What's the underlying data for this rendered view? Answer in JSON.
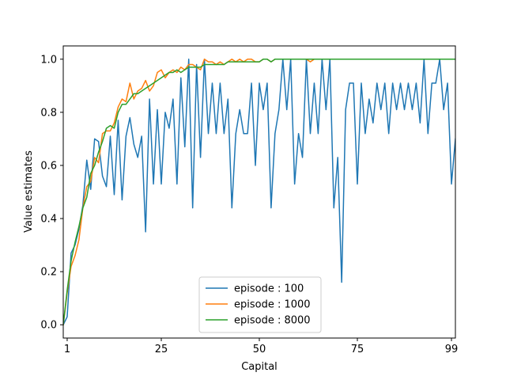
{
  "chart_data": {
    "type": "line",
    "xlabel": "Capital",
    "ylabel": "Value estimates",
    "xlim": [
      0,
      100
    ],
    "ylim": [
      -0.05,
      1.05
    ],
    "xticks": [
      1,
      25,
      50,
      75,
      99
    ],
    "yticks": [
      0.0,
      0.2,
      0.4,
      0.6,
      0.8,
      1.0
    ],
    "ytick_labels": [
      "0.0",
      "0.2",
      "0.4",
      "0.6",
      "0.8",
      "1.0"
    ],
    "grid": false,
    "legend_position": "lower center",
    "series": [
      {
        "name": "episode : 100",
        "color": "#1f77b4",
        "x": [
          0,
          1,
          2,
          3,
          4,
          5,
          6,
          7,
          8,
          9,
          10,
          11,
          12,
          13,
          14,
          15,
          16,
          17,
          18,
          19,
          20,
          21,
          22,
          23,
          24,
          25,
          26,
          27,
          28,
          29,
          30,
          31,
          32,
          33,
          34,
          35,
          36,
          37,
          38,
          39,
          40,
          41,
          42,
          43,
          44,
          45,
          46,
          47,
          48,
          49,
          50,
          51,
          52,
          53,
          54,
          55,
          56,
          57,
          58,
          59,
          60,
          61,
          62,
          63,
          64,
          65,
          66,
          67,
          68,
          69,
          70,
          71,
          72,
          73,
          74,
          75,
          76,
          77,
          78,
          79,
          80,
          81,
          82,
          83,
          84,
          85,
          86,
          87,
          88,
          89,
          90,
          91,
          92,
          93,
          94,
          95,
          96,
          97,
          98,
          99,
          100
        ],
        "y": [
          0.0,
          0.03,
          0.27,
          0.3,
          0.36,
          0.45,
          0.62,
          0.51,
          0.7,
          0.69,
          0.56,
          0.52,
          0.71,
          0.49,
          0.77,
          0.47,
          0.71,
          0.78,
          0.68,
          0.63,
          0.71,
          0.35,
          0.85,
          0.53,
          0.81,
          0.53,
          0.8,
          0.74,
          0.85,
          0.53,
          0.93,
          0.67,
          1.0,
          0.44,
          0.98,
          0.63,
          1.0,
          0.72,
          0.91,
          0.72,
          0.91,
          0.72,
          0.85,
          0.44,
          0.72,
          0.81,
          0.72,
          0.72,
          0.91,
          0.6,
          0.91,
          0.81,
          0.91,
          0.44,
          0.72,
          0.81,
          1.0,
          0.81,
          1.0,
          0.53,
          0.72,
          0.63,
          1.0,
          0.72,
          0.91,
          0.72,
          1.0,
          0.81,
          1.0,
          0.44,
          0.63,
          0.16,
          0.81,
          0.91,
          0.91,
          0.53,
          0.91,
          0.72,
          0.85,
          0.76,
          0.91,
          0.81,
          0.91,
          0.72,
          0.91,
          0.81,
          0.91,
          0.81,
          0.91,
          0.81,
          0.91,
          0.76,
          1.0,
          0.72,
          0.91,
          0.91,
          1.0,
          0.81,
          0.91,
          0.53,
          0.7
        ]
      },
      {
        "name": "episode : 1000",
        "color": "#ff7f0e",
        "x": [
          0,
          1,
          2,
          3,
          4,
          5,
          6,
          7,
          8,
          9,
          10,
          11,
          12,
          13,
          14,
          15,
          16,
          17,
          18,
          19,
          20,
          21,
          22,
          23,
          24,
          25,
          26,
          27,
          28,
          29,
          30,
          31,
          32,
          33,
          34,
          35,
          36,
          37,
          38,
          39,
          40,
          41,
          42,
          43,
          44,
          45,
          46,
          47,
          48,
          49,
          50,
          51,
          52,
          53,
          54,
          55,
          56,
          57,
          58,
          59,
          60,
          61,
          62,
          63,
          64,
          65,
          66,
          67,
          68,
          69,
          70,
          71,
          72,
          73,
          74,
          75,
          76,
          77,
          78,
          79,
          80,
          81,
          82,
          83,
          84,
          85,
          86,
          87,
          88,
          89,
          90,
          91,
          92,
          93,
          94,
          95,
          96,
          97,
          98,
          99,
          100
        ],
        "y": [
          0.0,
          0.12,
          0.22,
          0.26,
          0.32,
          0.44,
          0.52,
          0.54,
          0.63,
          0.61,
          0.72,
          0.73,
          0.73,
          0.76,
          0.82,
          0.85,
          0.84,
          0.91,
          0.85,
          0.88,
          0.89,
          0.92,
          0.88,
          0.9,
          0.95,
          0.96,
          0.93,
          0.95,
          0.96,
          0.95,
          0.97,
          0.96,
          0.98,
          0.98,
          0.97,
          0.96,
          1.0,
          0.99,
          0.99,
          0.98,
          0.99,
          0.98,
          0.99,
          1.0,
          0.99,
          1.0,
          0.99,
          1.0,
          1.0,
          0.99,
          0.99,
          1.0,
          1.0,
          0.99,
          1.0,
          1.0,
          1.0,
          1.0,
          1.0,
          1.0,
          1.0,
          1.0,
          1.0,
          0.99,
          1.0,
          1.0,
          1.0,
          1.0,
          1.0,
          1.0,
          1.0,
          1.0,
          1.0,
          1.0,
          1.0,
          1.0,
          1.0,
          1.0,
          1.0,
          1.0,
          1.0,
          1.0,
          1.0,
          1.0,
          1.0,
          1.0,
          1.0,
          1.0,
          1.0,
          1.0,
          1.0,
          1.0,
          1.0,
          1.0,
          1.0,
          1.0,
          1.0,
          1.0,
          1.0,
          1.0,
          1.0
        ]
      },
      {
        "name": "episode : 8000",
        "color": "#2ca02c",
        "x": [
          0,
          1,
          2,
          3,
          4,
          5,
          6,
          7,
          8,
          9,
          10,
          11,
          12,
          13,
          14,
          15,
          16,
          17,
          18,
          19,
          20,
          21,
          22,
          23,
          24,
          25,
          26,
          27,
          28,
          29,
          30,
          31,
          32,
          33,
          34,
          35,
          36,
          37,
          38,
          39,
          40,
          41,
          42,
          43,
          44,
          45,
          46,
          47,
          48,
          49,
          50,
          51,
          52,
          53,
          54,
          55,
          56,
          57,
          58,
          59,
          60,
          61,
          62,
          63,
          64,
          65,
          66,
          67,
          68,
          69,
          70,
          71,
          72,
          73,
          74,
          75,
          76,
          77,
          78,
          79,
          80,
          81,
          82,
          83,
          84,
          85,
          86,
          87,
          88,
          89,
          90,
          91,
          92,
          93,
          94,
          95,
          96,
          97,
          98,
          99,
          100
        ],
        "y": [
          0.0,
          0.13,
          0.24,
          0.31,
          0.37,
          0.44,
          0.48,
          0.57,
          0.6,
          0.65,
          0.69,
          0.74,
          0.75,
          0.74,
          0.8,
          0.83,
          0.83,
          0.85,
          0.87,
          0.87,
          0.88,
          0.89,
          0.9,
          0.91,
          0.92,
          0.93,
          0.94,
          0.95,
          0.95,
          0.96,
          0.95,
          0.96,
          0.97,
          0.97,
          0.97,
          0.97,
          0.98,
          0.98,
          0.98,
          0.98,
          0.98,
          0.98,
          0.99,
          0.99,
          0.99,
          0.99,
          0.99,
          0.99,
          0.99,
          0.99,
          0.99,
          1.0,
          1.0,
          0.99,
          1.0,
          1.0,
          1.0,
          1.0,
          1.0,
          1.0,
          1.0,
          1.0,
          1.0,
          1.0,
          1.0,
          1.0,
          1.0,
          1.0,
          1.0,
          1.0,
          1.0,
          1.0,
          1.0,
          1.0,
          1.0,
          1.0,
          1.0,
          1.0,
          1.0,
          1.0,
          1.0,
          1.0,
          1.0,
          1.0,
          1.0,
          1.0,
          1.0,
          1.0,
          1.0,
          1.0,
          1.0,
          1.0,
          1.0,
          1.0,
          1.0,
          1.0,
          1.0,
          1.0,
          1.0,
          1.0,
          1.0
        ]
      }
    ]
  }
}
